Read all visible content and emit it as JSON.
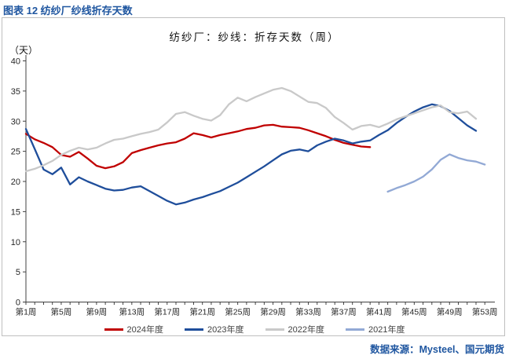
{
  "header": {
    "title": "图表 12 纺纱厂纱线折存天数"
  },
  "footer": {
    "source": "数据来源：Mysteel、国元期货"
  },
  "chart_data": {
    "type": "line",
    "title": "纺纱厂：纱线：折存天数（周）",
    "unit_label": "（天）",
    "xlabel": "",
    "ylabel": "天",
    "ylim": [
      0,
      40
    ],
    "y_ticks": [
      0,
      5,
      10,
      15,
      20,
      25,
      30,
      35,
      40
    ],
    "x_weeks_total": 53,
    "x_tick_step": 4,
    "x_tick_labels": [
      "第1周",
      "第5周",
      "第9周",
      "第13周",
      "第17周",
      "第21周",
      "第25周",
      "第29周",
      "第33周",
      "第37周",
      "第41周",
      "第45周",
      "第49周",
      "第53周"
    ],
    "grid": false,
    "legend_position": "bottom",
    "series": [
      {
        "name": "2024年度",
        "color": "#c00000",
        "start_week": 1,
        "values": [
          27.9,
          27.0,
          26.4,
          25.7,
          24.4,
          24.1,
          24.9,
          23.8,
          22.6,
          22.2,
          22.5,
          23.2,
          24.7,
          25.2,
          25.6,
          26.0,
          26.3,
          26.5,
          27.1,
          28.0,
          27.7,
          27.3,
          27.7,
          28.0,
          28.3,
          28.7,
          28.9,
          29.3,
          29.4,
          29.1,
          29.0,
          28.9,
          28.5,
          28.0,
          27.5,
          26.9,
          26.4,
          26.1,
          25.8,
          25.7
        ]
      },
      {
        "name": "2023年度",
        "color": "#1f4e9b",
        "start_week": 1,
        "values": [
          28.7,
          25.4,
          22.0,
          21.2,
          22.3,
          19.5,
          20.7,
          20.0,
          19.4,
          18.8,
          18.5,
          18.6,
          19.0,
          19.2,
          18.4,
          17.6,
          16.8,
          16.2,
          16.5,
          17.0,
          17.4,
          17.9,
          18.4,
          19.1,
          19.8,
          20.7,
          21.6,
          22.5,
          23.5,
          24.5,
          25.1,
          25.3,
          25.0,
          26.0,
          26.6,
          27.1,
          26.8,
          26.3,
          26.6,
          26.8,
          27.7,
          28.5,
          29.7,
          30.7,
          31.6,
          32.3,
          32.8,
          32.5,
          31.7,
          30.5,
          29.3,
          28.4
        ]
      },
      {
        "name": "2022年度",
        "color": "#c9c9c9",
        "start_week": 1,
        "values": [
          21.7,
          22.1,
          22.7,
          23.4,
          24.4,
          25.1,
          25.6,
          25.3,
          25.6,
          26.3,
          26.9,
          27.1,
          27.5,
          27.9,
          28.2,
          28.6,
          29.8,
          31.2,
          31.5,
          30.9,
          30.4,
          30.1,
          31.0,
          32.8,
          33.9,
          33.3,
          34.0,
          34.6,
          35.2,
          35.5,
          35.0,
          34.1,
          33.2,
          33.0,
          32.2,
          30.7,
          29.7,
          28.6,
          29.2,
          29.4,
          29.0,
          29.6,
          30.3,
          30.8,
          31.3,
          31.8,
          32.3,
          32.6,
          31.5,
          31.3,
          31.6,
          30.4
        ]
      },
      {
        "name": "2021年度",
        "color": "#92a9d5",
        "start_week": 42,
        "values": [
          18.3,
          18.9,
          19.4,
          20.0,
          20.8,
          22.0,
          23.6,
          24.5,
          23.9,
          23.5,
          23.3,
          22.8
        ]
      }
    ]
  }
}
